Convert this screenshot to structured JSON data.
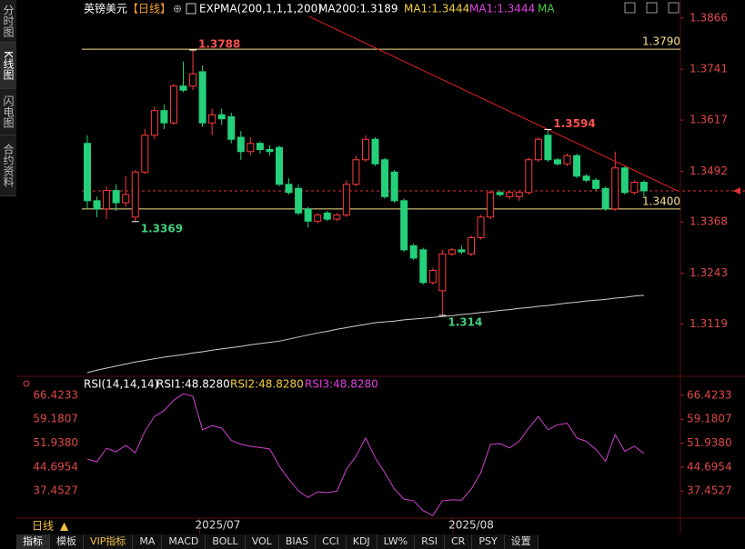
{
  "sidebar": [
    "分时图",
    "K线图",
    "闪电图",
    "合约资料"
  ],
  "header": {
    "title": "英镑美元",
    "period": "【日线】",
    "indicator": "EXPMA(200,1,1,1,200)",
    "ma200": "MA200:1.3189",
    "ma1a": "MA1:1.3444",
    "ma1b": "MA1:1.3444",
    "ma": "MA"
  },
  "rsi_header": {
    "name": "RSI(14,14,14)",
    "rsi1": "RSI1:48.8280",
    "rsi2": "RSI2:48.8280",
    "rsi3": "RSI3:48.8280"
  },
  "x_labels": [
    "2025/07",
    "2025/08"
  ],
  "period_button": "日线",
  "tabs": [
    "指标",
    "模板",
    "VIP指标",
    "MA",
    "MACD",
    "BOLL",
    "VOL",
    "BIAS",
    "CCI",
    "KDJ",
    "LW%",
    "RSI",
    "CR",
    "PSY",
    "设置"
  ],
  "chart_data": [
    {
      "type": "candlestick",
      "ylim": [
        1.3,
        1.3888
      ],
      "yticks": [
        1.3866,
        1.3741,
        1.3617,
        1.3492,
        1.3368,
        1.3243,
        1.3119
      ],
      "up_color": "#ff3b3b",
      "down_color": "#25d07a",
      "candles": [
        [
          1.356,
          1.358,
          1.34,
          1.342
        ],
        [
          1.342,
          1.343,
          1.338,
          1.34
        ],
        [
          1.34,
          1.3455,
          1.3375,
          1.3445
        ],
        [
          1.3445,
          1.346,
          1.3395,
          1.3415
        ],
        [
          1.3415,
          1.348,
          1.3405,
          1.3435
        ],
        [
          1.338,
          1.3495,
          1.3369,
          1.349
        ],
        [
          1.349,
          1.3595,
          1.3485,
          1.358
        ],
        [
          1.358,
          1.365,
          1.357,
          1.364
        ],
        [
          1.364,
          1.3655,
          1.3595,
          1.361
        ],
        [
          1.361,
          1.3705,
          1.3605,
          1.37
        ],
        [
          1.37,
          1.376,
          1.3685,
          1.369
        ],
        [
          1.37,
          1.3788,
          1.369,
          1.373
        ],
        [
          1.3735,
          1.375,
          1.36,
          1.361
        ],
        [
          1.361,
          1.3645,
          1.358,
          1.363
        ],
        [
          1.363,
          1.3645,
          1.3605,
          1.362
        ],
        [
          1.3625,
          1.3635,
          1.356,
          1.357
        ],
        [
          1.3575,
          1.359,
          1.352,
          1.354
        ],
        [
          1.354,
          1.3575,
          1.353,
          1.356
        ],
        [
          1.356,
          1.3565,
          1.3535,
          1.3545
        ],
        [
          1.3545,
          1.3555,
          1.353,
          1.354
        ],
        [
          1.355,
          1.3555,
          1.3455,
          1.346
        ],
        [
          1.346,
          1.3475,
          1.3435,
          1.344
        ],
        [
          1.345,
          1.346,
          1.3385,
          1.339
        ],
        [
          1.34,
          1.3405,
          1.3355,
          1.337
        ],
        [
          1.337,
          1.339,
          1.3365,
          1.3385
        ],
        [
          1.339,
          1.3395,
          1.337,
          1.3375
        ],
        [
          1.3375,
          1.339,
          1.337,
          1.3385
        ],
        [
          1.3385,
          1.347,
          1.338,
          1.346
        ],
        [
          1.346,
          1.353,
          1.3455,
          1.352
        ],
        [
          1.352,
          1.358,
          1.3515,
          1.357
        ],
        [
          1.357,
          1.3575,
          1.3505,
          1.351
        ],
        [
          1.352,
          1.3525,
          1.3425,
          1.343
        ],
        [
          1.349,
          1.3495,
          1.3415,
          1.342
        ],
        [
          1.342,
          1.3425,
          1.3295,
          1.33
        ],
        [
          1.331,
          1.3315,
          1.3275,
          1.328
        ],
        [
          1.33,
          1.3305,
          1.3215,
          1.322
        ],
        [
          1.322,
          1.3255,
          1.3215,
          1.325
        ],
        [
          1.32,
          1.33,
          1.314,
          1.329
        ],
        [
          1.329,
          1.3305,
          1.3285,
          1.33
        ],
        [
          1.33,
          1.331,
          1.329,
          1.3295
        ],
        [
          1.329,
          1.3335,
          1.3285,
          1.333
        ],
        [
          1.333,
          1.3385,
          1.3325,
          1.338
        ],
        [
          1.338,
          1.3445,
          1.3375,
          1.344
        ],
        [
          1.344,
          1.3445,
          1.343,
          1.3435
        ],
        [
          1.343,
          1.3445,
          1.3425,
          1.344
        ],
        [
          1.343,
          1.3445,
          1.342,
          1.344
        ],
        [
          1.344,
          1.3525,
          1.3435,
          1.352
        ],
        [
          1.352,
          1.3575,
          1.3515,
          1.357
        ],
        [
          1.358,
          1.3594,
          1.3515,
          1.352
        ],
        [
          1.352,
          1.3525,
          1.3505,
          1.351
        ],
        [
          1.351,
          1.3535,
          1.3505,
          1.353
        ],
        [
          1.353,
          1.3535,
          1.3475,
          1.348
        ],
        [
          1.348,
          1.3485,
          1.3465,
          1.347
        ],
        [
          1.347,
          1.3475,
          1.3445,
          1.345
        ],
        [
          1.345,
          1.3455,
          1.3395,
          1.34
        ],
        [
          1.34,
          1.354,
          1.3395,
          1.35
        ],
        [
          1.35,
          1.3505,
          1.3435,
          1.344
        ],
        [
          1.344,
          1.347,
          1.3435,
          1.3465
        ],
        [
          1.3465,
          1.347,
          1.343,
          1.3444
        ]
      ],
      "ma_color": "#cfcfcf",
      "ma200": [
        1.3,
        1.3006,
        1.3011,
        1.3016,
        1.3021,
        1.3026,
        1.303,
        1.3034,
        1.3038,
        1.3041,
        1.3044,
        1.3048,
        1.3051,
        1.3055,
        1.3058,
        1.3061,
        1.3064,
        1.3068,
        1.3071,
        1.3074,
        1.3077,
        1.3082,
        1.3087,
        1.3092,
        1.3097,
        1.3101,
        1.3106,
        1.311,
        1.3114,
        1.3118,
        1.3122,
        1.3124,
        1.3126,
        1.3129,
        1.3131,
        1.3133,
        1.3135,
        1.3137,
        1.3139,
        1.3142,
        1.3144,
        1.3147,
        1.3149,
        1.3152,
        1.3154,
        1.3157,
        1.3159,
        1.3162,
        1.3164,
        1.3167,
        1.317,
        1.3172,
        1.3175,
        1.3177,
        1.3179,
        1.3182,
        1.3184,
        1.3187,
        1.3189
      ],
      "hlines": [
        {
          "value": 1.379,
          "label": "1.3790"
        },
        {
          "value": 1.34,
          "label": "1.3400"
        }
      ],
      "hline_color": "#f5e08a",
      "last": 1.3444,
      "trendline": {
        "x": [
          23.1,
          61.5
        ],
        "y": [
          1.387,
          1.3444
        ],
        "color": "#e02020"
      },
      "point_labels": [
        {
          "index": 11,
          "value": 1.3788,
          "color": "#ff5050"
        },
        {
          "index": 5,
          "value": 1.3369,
          "color": "#40d080"
        },
        {
          "index": 37,
          "value": 1.314,
          "color": "#40d080"
        },
        {
          "index": 48,
          "value": 1.3594,
          "color": "#ff5050"
        }
      ]
    },
    {
      "type": "line",
      "color": "#d040d0",
      "ylim": [
        29.8,
        71.9
      ],
      "yticks": [
        66.4233,
        59.1807,
        {
          "value": 51.938,
          "label": "51.9380"
        },
        44.6954,
        37.4527
      ],
      "values": [
        47.1,
        46.3,
        50.4,
        49.3,
        51.3,
        49,
        55.5,
        60,
        61.8,
        64.9,
        66.9,
        66.1,
        56,
        57.2,
        56.5,
        52.8,
        51.6,
        51,
        50.6,
        50.2,
        45,
        41,
        37.5,
        35.5,
        37.2,
        37,
        37.4,
        44,
        48,
        53.5,
        47.5,
        43,
        38,
        35,
        34.5,
        31.5,
        30,
        34.5,
        34.8,
        34.7,
        38,
        43,
        51.5,
        51.8,
        50.5,
        52.5,
        56.5,
        60,
        56,
        57.5,
        58,
        53.5,
        52.5,
        50,
        46.5,
        54.5,
        49.5,
        51,
        48.8
      ]
    }
  ]
}
